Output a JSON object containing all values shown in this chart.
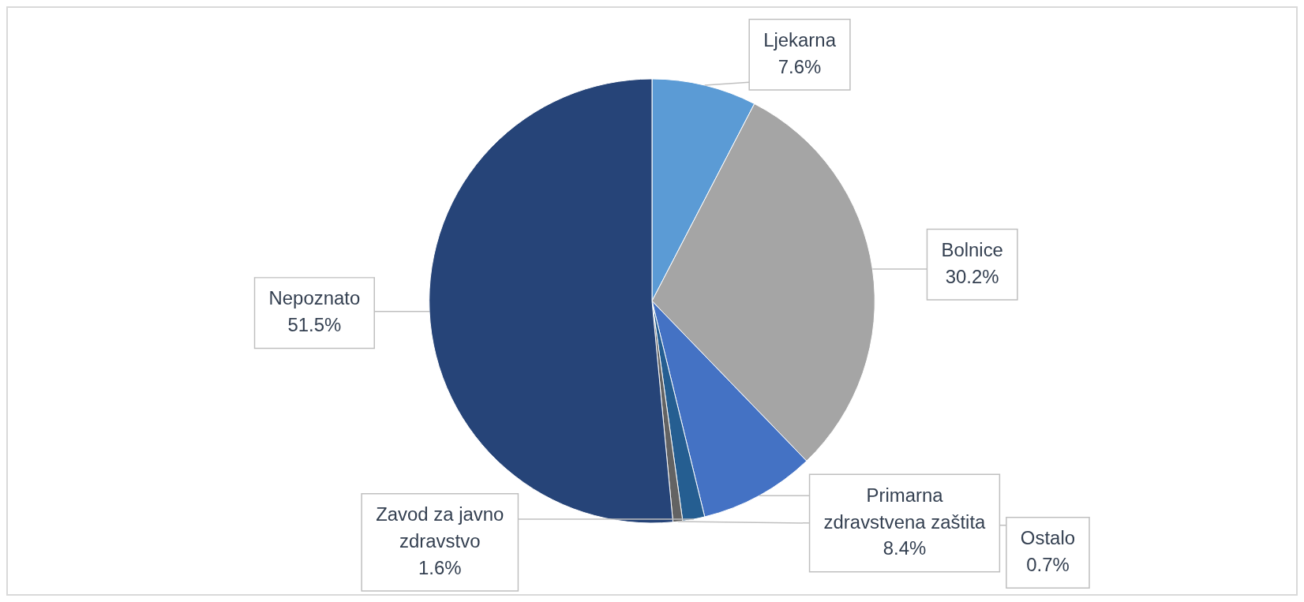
{
  "chart_data": {
    "type": "pie",
    "categories": [
      "Ljekarna",
      "Bolnice",
      "Primarna zdravstvena zaštita",
      "Zavod za javno zdravstvo",
      "Ostalo",
      "Nepoznato"
    ],
    "values": [
      7.6,
      30.2,
      8.4,
      1.6,
      0.7,
      51.5
    ],
    "colors": [
      "#5b9bd5",
      "#a5a5a5",
      "#4472c4",
      "#255e91",
      "#636363",
      "#264478"
    ],
    "value_labels": [
      "7.6%",
      "30.2%",
      "8.4%",
      "1.6%",
      "0.7%",
      "51.5%"
    ],
    "legend": false
  }
}
